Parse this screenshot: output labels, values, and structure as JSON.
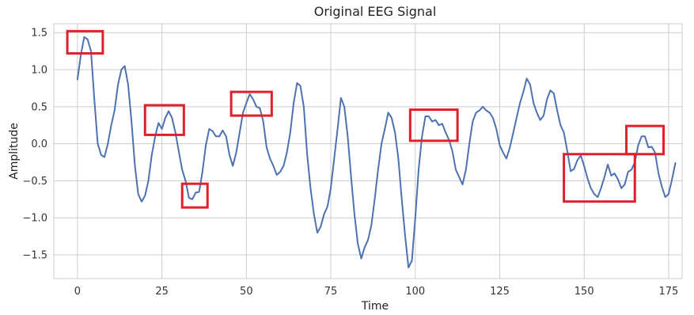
{
  "chart_data": {
    "type": "line",
    "title": "Original EEG Signal",
    "xlabel": "Time",
    "ylabel": "Amplitude",
    "xlim": [
      -7,
      179
    ],
    "ylim": [
      -1.82,
      1.62
    ],
    "xticks": [
      0,
      25,
      50,
      75,
      100,
      125,
      150,
      175
    ],
    "yticks": [
      -1.5,
      -1.0,
      -0.5,
      0.0,
      0.5,
      1.0,
      1.5
    ],
    "xtick_labels": [
      "0",
      "25",
      "50",
      "75",
      "100",
      "125",
      "150",
      "175"
    ],
    "ytick_labels": [
      "−1.5",
      "−1.0",
      "−0.5",
      "0.0",
      "0.5",
      "1.0",
      "1.5"
    ],
    "grid": true,
    "line_color": "#4c72b0",
    "highlight_color": "#e0202a",
    "series": [
      {
        "x": [
          0,
          1,
          2,
          3,
          4,
          5,
          6,
          7,
          8,
          9,
          10,
          11,
          12,
          13,
          14,
          15,
          16,
          17,
          18,
          19,
          20,
          21,
          22,
          23,
          24,
          25,
          26,
          27,
          28,
          29,
          30,
          31,
          32,
          33,
          34,
          35,
          36,
          37,
          38,
          39,
          40,
          41,
          42,
          43,
          44,
          45,
          46,
          47,
          48,
          49,
          50,
          51,
          52,
          53,
          54,
          55,
          56,
          57,
          58,
          59,
          60,
          61,
          62,
          63,
          64,
          65,
          66,
          67,
          68,
          69,
          70,
          71,
          72,
          73,
          74,
          75,
          76,
          77,
          78,
          79,
          80,
          81,
          82,
          83,
          84,
          85,
          86,
          87,
          88,
          89,
          90,
          91,
          92,
          93,
          94,
          95,
          96,
          97,
          98,
          99,
          100,
          101,
          102,
          103,
          104,
          105,
          106,
          107,
          108,
          109,
          110,
          111,
          112,
          113,
          114,
          115,
          116,
          117,
          118,
          119,
          120,
          121,
          122,
          123,
          124,
          125,
          126,
          127,
          128,
          129,
          130,
          131,
          132,
          133,
          134,
          135,
          136,
          137,
          138,
          139,
          140,
          141,
          142,
          143,
          144,
          145,
          146,
          147,
          148,
          149,
          150,
          151,
          152,
          153,
          154,
          155,
          156,
          157,
          158,
          159,
          160,
          161,
          162,
          163,
          164,
          165,
          166,
          167,
          168,
          169,
          170,
          171,
          172,
          173,
          174,
          175,
          176,
          177
        ],
        "y": [
          0.87,
          1.2,
          1.44,
          1.41,
          1.25,
          0.6,
          0.0,
          -0.15,
          -0.18,
          0.0,
          0.25,
          0.45,
          0.8,
          1.0,
          1.05,
          0.8,
          0.3,
          -0.3,
          -0.68,
          -0.78,
          -0.7,
          -0.5,
          -0.15,
          0.1,
          0.28,
          0.2,
          0.35,
          0.44,
          0.35,
          0.15,
          -0.1,
          -0.35,
          -0.5,
          -0.73,
          -0.75,
          -0.66,
          -0.65,
          -0.38,
          -0.02,
          0.2,
          0.17,
          0.1,
          0.1,
          0.18,
          0.1,
          -0.15,
          -0.3,
          -0.12,
          0.15,
          0.42,
          0.55,
          0.67,
          0.6,
          0.5,
          0.48,
          0.3,
          -0.05,
          -0.2,
          -0.3,
          -0.42,
          -0.38,
          -0.3,
          -0.12,
          0.15,
          0.55,
          0.82,
          0.78,
          0.5,
          -0.15,
          -0.6,
          -0.95,
          -1.2,
          -1.12,
          -0.95,
          -0.85,
          -0.6,
          -0.2,
          0.2,
          0.62,
          0.5,
          0.1,
          -0.45,
          -0.95,
          -1.35,
          -1.55,
          -1.4,
          -1.3,
          -1.1,
          -0.75,
          -0.35,
          0.0,
          0.2,
          0.42,
          0.35,
          0.15,
          -0.2,
          -0.75,
          -1.25,
          -1.67,
          -1.58,
          -1.0,
          -0.35,
          0.1,
          0.37,
          0.37,
          0.3,
          0.32,
          0.25,
          0.27,
          0.15,
          0.05,
          -0.1,
          -0.35,
          -0.45,
          -0.55,
          -0.35,
          0.0,
          0.3,
          0.42,
          0.45,
          0.5,
          0.45,
          0.42,
          0.35,
          0.2,
          -0.02,
          -0.12,
          -0.2,
          -0.05,
          0.15,
          0.35,
          0.55,
          0.7,
          0.88,
          0.8,
          0.55,
          0.42,
          0.32,
          0.38,
          0.6,
          0.72,
          0.68,
          0.45,
          0.25,
          0.15,
          -0.1,
          -0.37,
          -0.34,
          -0.22,
          -0.16,
          -0.3,
          -0.47,
          -0.6,
          -0.68,
          -0.72,
          -0.6,
          -0.45,
          -0.28,
          -0.43,
          -0.4,
          -0.48,
          -0.6,
          -0.55,
          -0.38,
          -0.35,
          -0.25,
          -0.02,
          0.1,
          0.1,
          -0.05,
          -0.04,
          -0.12,
          -0.4,
          -0.58,
          -0.72,
          -0.68,
          -0.48,
          -0.26
        ]
      }
    ],
    "highlight_boxes": [
      {
        "x0": -3,
        "x1": 7.5,
        "y0": 1.22,
        "y1": 1.52
      },
      {
        "x0": 20,
        "x1": 31.5,
        "y0": 0.12,
        "y1": 0.52
      },
      {
        "x0": 31,
        "x1": 38.5,
        "y0": -0.86,
        "y1": -0.54
      },
      {
        "x0": 45.5,
        "x1": 57.5,
        "y0": 0.38,
        "y1": 0.7
      },
      {
        "x0": 98.5,
        "x1": 112.5,
        "y0": 0.04,
        "y1": 0.46
      },
      {
        "x0": 144,
        "x1": 165,
        "y0": -0.78,
        "y1": -0.14
      },
      {
        "x0": 162.5,
        "x1": 173.5,
        "y0": -0.14,
        "y1": 0.24
      }
    ]
  }
}
